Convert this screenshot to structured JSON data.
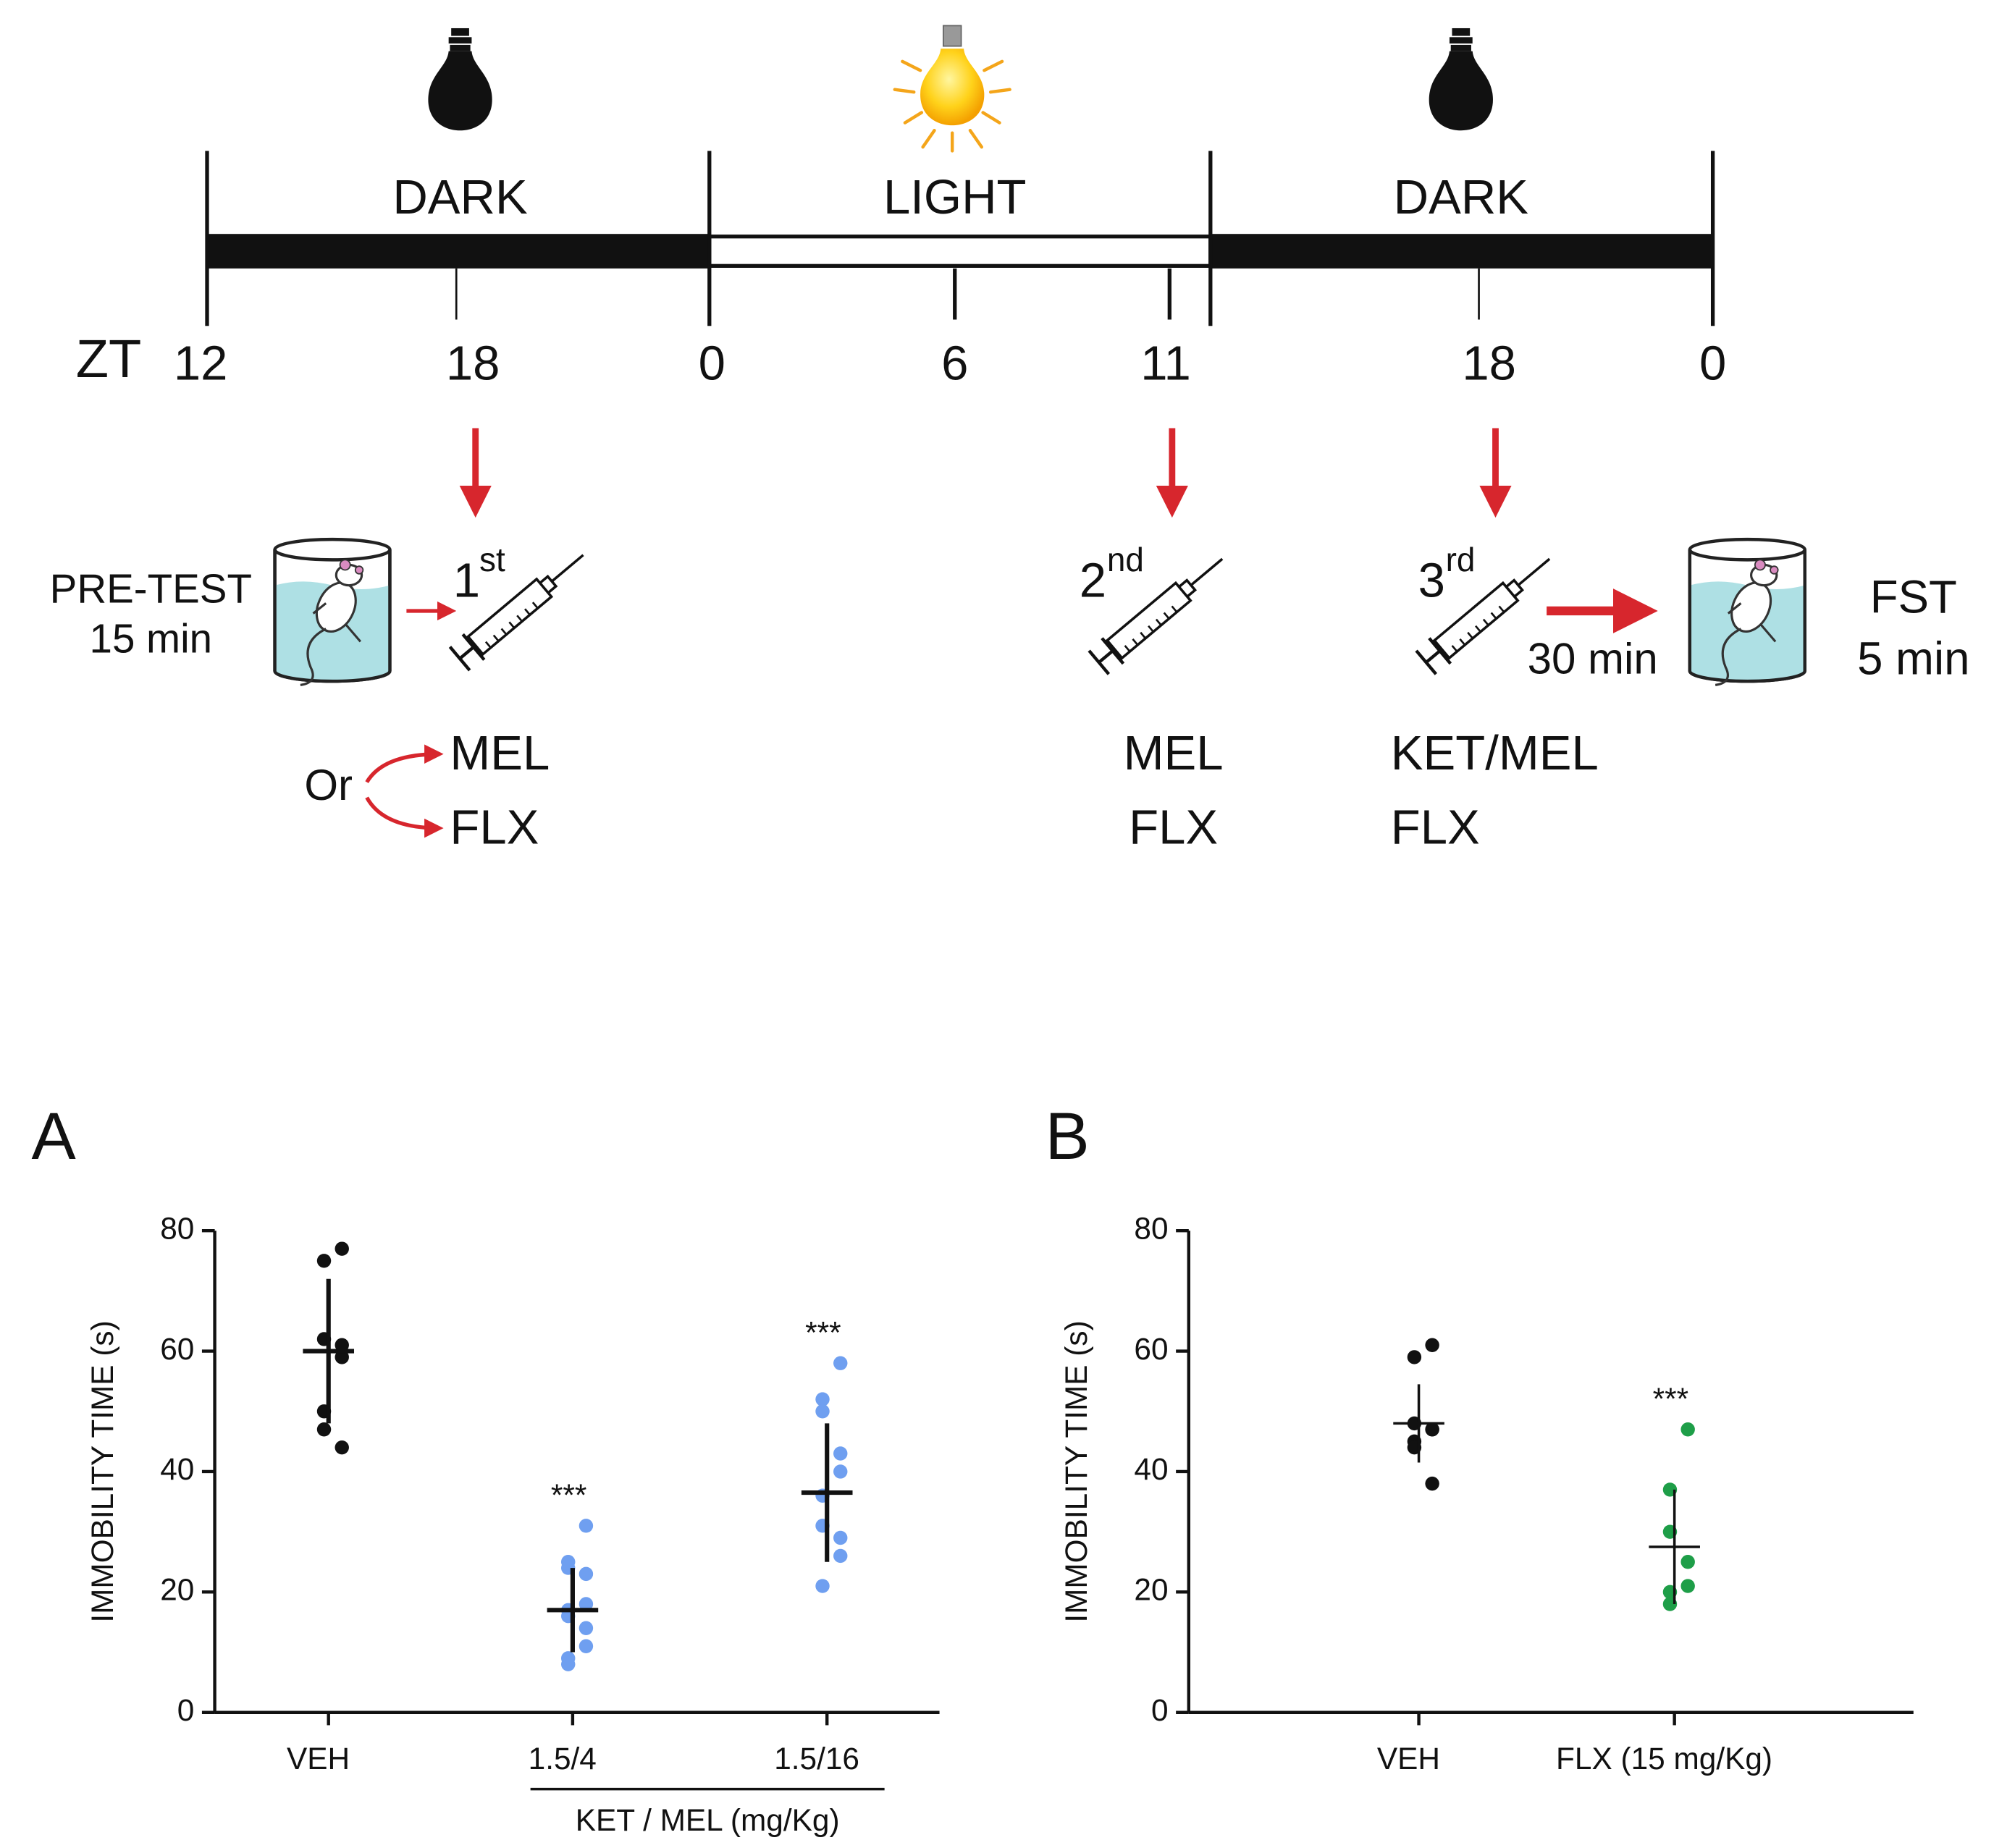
{
  "diagram": {
    "phases": [
      "DARK",
      "LIGHT",
      "DARK"
    ],
    "zt_label": "ZT",
    "zt_ticks": [
      12,
      18,
      0,
      6,
      11,
      18,
      0
    ],
    "pretest": [
      "PRE-TEST",
      "15 min"
    ],
    "injections": [
      {
        "number": "1",
        "suffix": "st"
      },
      {
        "number": "2",
        "suffix": "nd"
      },
      {
        "number": "3",
        "suffix": "rd"
      }
    ],
    "or": "Or",
    "first_drugs": [
      "MEL",
      "FLX"
    ],
    "second_drugs": [
      "MEL",
      "FLX"
    ],
    "third_drugs": [
      "KET/MEL",
      "FLX"
    ],
    "delay": "30 min",
    "test": [
      "FST",
      "5 min"
    ]
  },
  "chart_data": [
    {
      "type": "strip",
      "panel": "A",
      "y_label": "IMMOBILITY TIME (s)",
      "categories": [
        "VEH",
        "1.5/4",
        "1.5/16"
      ],
      "group_label": "KET / MEL (mg/Kg)",
      "colors": [
        "#111111",
        "#6f9ff0",
        "#6f9ff0"
      ],
      "points": [
        [
          77,
          75,
          62,
          61,
          59,
          50,
          47,
          44
        ],
        [
          31,
          25,
          24,
          23,
          18,
          17,
          16,
          14,
          11,
          9,
          8
        ],
        [
          58,
          52,
          50,
          43,
          40,
          36,
          31,
          29,
          26,
          21
        ]
      ],
      "means": [
        60,
        17,
        36.5
      ],
      "sds": [
        12,
        7,
        11.5
      ],
      "significance": [
        {
          "category": "1.5/4",
          "label": "***"
        },
        {
          "category": "1.5/16",
          "label": "***"
        }
      ],
      "ylim": [
        0,
        80
      ],
      "yticks": [
        0,
        20,
        40,
        60,
        80
      ]
    },
    {
      "type": "strip",
      "panel": "B",
      "y_label": "IMMOBILITY TIME (s)",
      "categories": [
        "VEH",
        "FLX (15 mg/Kg)"
      ],
      "colors": [
        "#111111",
        "#1e9e48"
      ],
      "points": [
        [
          61,
          59,
          48,
          47,
          47,
          45,
          44,
          38
        ],
        [
          47,
          37,
          30,
          25,
          21,
          20,
          18
        ]
      ],
      "means": [
        48,
        27.5
      ],
      "sds": [
        6.5,
        9.5
      ],
      "significance": [
        {
          "category": "FLX (15 mg/Kg)",
          "label": "***"
        }
      ],
      "ylim": [
        0,
        80
      ],
      "yticks": [
        0,
        20,
        40,
        60,
        80
      ]
    }
  ]
}
